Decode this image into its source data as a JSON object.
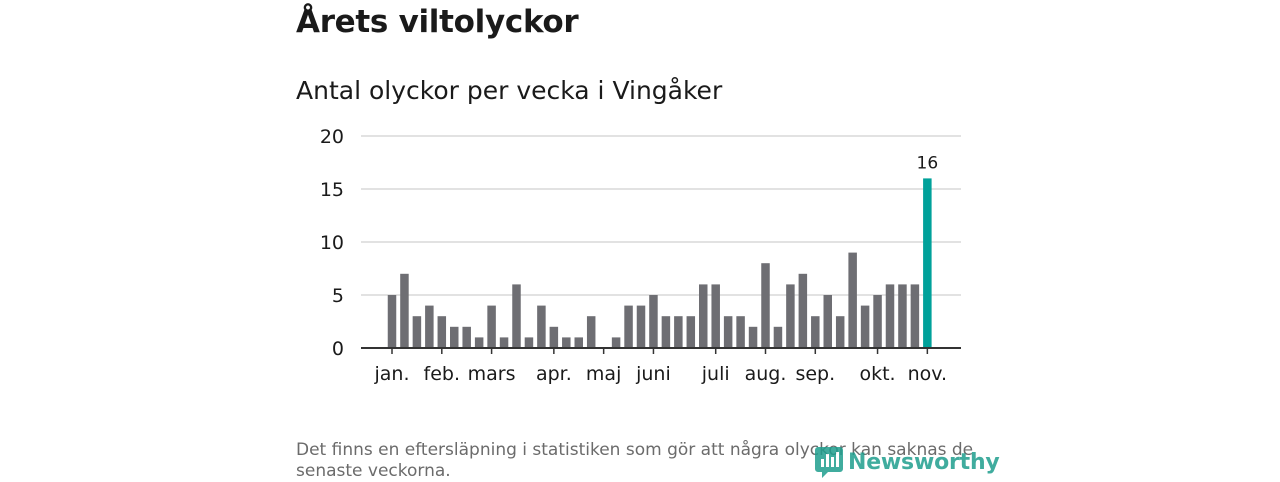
{
  "title": "Årets viltolyckor",
  "footnote": "Det finns en eftersläpning i statistiken som gör att några olyckor kan saknas de senaste veckorna.",
  "brand": {
    "name": "Newsworthy",
    "icon": "newsworthy-logo-icon"
  },
  "colors": {
    "bar": "#6e6e73",
    "highlight": "#00a19a",
    "grid": "#d9d9d9",
    "axis": "#333333",
    "text": "#1a1a1a"
  },
  "chart_data": {
    "type": "bar",
    "title": "Antal olyckor per vecka i Vingåker",
    "xlabel": "",
    "ylabel": "",
    "ylim": [
      0,
      20
    ],
    "yticks": [
      0,
      5,
      10,
      15,
      20
    ],
    "grid": true,
    "x": [
      1,
      2,
      3,
      4,
      5,
      6,
      7,
      8,
      9,
      10,
      11,
      12,
      13,
      14,
      15,
      16,
      17,
      18,
      19,
      20,
      21,
      22,
      23,
      24,
      25,
      26,
      27,
      28,
      29,
      30,
      31,
      32,
      33,
      34,
      35,
      36,
      37,
      38,
      39,
      40,
      41,
      42,
      43,
      44
    ],
    "values": [
      5,
      7,
      3,
      4,
      3,
      2,
      2,
      1,
      4,
      1,
      6,
      1,
      4,
      2,
      1,
      1,
      3,
      0,
      1,
      4,
      4,
      5,
      3,
      3,
      3,
      6,
      6,
      3,
      3,
      2,
      8,
      2,
      6,
      7,
      3,
      5,
      3,
      9,
      4,
      5,
      6,
      6,
      6,
      16
    ],
    "highlight_index": 43,
    "highlight_label": "16",
    "month_labels": [
      {
        "label": "jan.",
        "week": 1
      },
      {
        "label": "feb.",
        "week": 5
      },
      {
        "label": "mars",
        "week": 9
      },
      {
        "label": "apr.",
        "week": 14
      },
      {
        "label": "maj",
        "week": 18
      },
      {
        "label": "juni",
        "week": 22
      },
      {
        "label": "juli",
        "week": 27
      },
      {
        "label": "aug.",
        "week": 31
      },
      {
        "label": "sep.",
        "week": 35
      },
      {
        "label": "okt.",
        "week": 40
      },
      {
        "label": "nov.",
        "week": 44
      }
    ]
  }
}
